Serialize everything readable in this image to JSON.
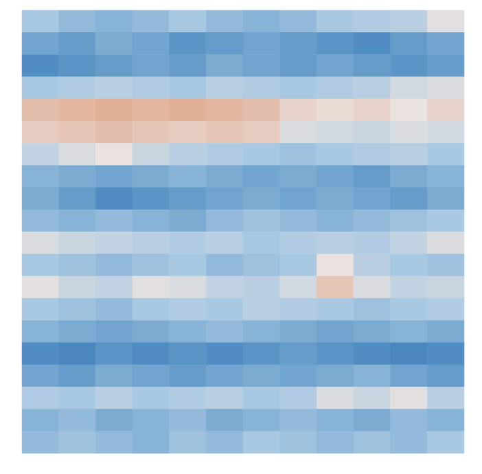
{
  "chart_data": {
    "type": "heatmap",
    "tick_labels": false,
    "zlim": [
      -1,
      1
    ],
    "cells": [
      [
        -0.2,
        -0.3,
        -0.35,
        -0.3,
        -0.2,
        -0.3,
        -0.35,
        -0.3,
        -0.2,
        -0.15,
        -0.1,
        0.15
      ],
      [
        -0.45,
        -0.5,
        -0.4,
        -0.45,
        -0.55,
        -0.5,
        -0.45,
        -0.5,
        -0.55,
        -0.6,
        -0.5,
        -0.45
      ],
      [
        -0.6,
        -0.55,
        -0.5,
        -0.45,
        -0.5,
        -0.4,
        -0.45,
        -0.5,
        -0.45,
        -0.5,
        -0.55,
        -0.5
      ],
      [
        -0.2,
        -0.15,
        -0.1,
        -0.15,
        -0.2,
        -0.1,
        -0.15,
        -0.2,
        -0.15,
        -0.1,
        0.05,
        0.1
      ],
      [
        0.45,
        0.5,
        0.55,
        0.5,
        0.55,
        0.5,
        0.45,
        0.3,
        0.25,
        0.3,
        0.2,
        0.3
      ],
      [
        0.35,
        0.4,
        0.45,
        0.4,
        0.35,
        0.4,
        0.35,
        0.1,
        0.05,
        0.0,
        0.1,
        0.05
      ],
      [
        -0.05,
        0.1,
        0.2,
        0.0,
        -0.1,
        -0.15,
        -0.2,
        -0.25,
        -0.2,
        -0.15,
        -0.1,
        -0.2
      ],
      [
        -0.35,
        -0.4,
        -0.45,
        -0.4,
        -0.35,
        -0.4,
        -0.45,
        -0.4,
        -0.45,
        -0.5,
        -0.4,
        -0.35
      ],
      [
        -0.4,
        -0.5,
        -0.6,
        -0.55,
        -0.5,
        -0.45,
        -0.4,
        -0.45,
        -0.4,
        -0.45,
        -0.5,
        -0.4
      ],
      [
        -0.3,
        -0.35,
        -0.3,
        -0.35,
        -0.4,
        -0.3,
        -0.25,
        -0.3,
        -0.35,
        -0.3,
        -0.25,
        -0.2
      ],
      [
        0.1,
        0.0,
        -0.05,
        -0.1,
        -0.15,
        -0.1,
        -0.2,
        -0.15,
        -0.1,
        -0.15,
        -0.05,
        0.1
      ],
      [
        -0.2,
        -0.25,
        -0.3,
        -0.25,
        -0.2,
        -0.3,
        -0.25,
        -0.2,
        0.2,
        -0.1,
        -0.2,
        -0.25
      ],
      [
        0.15,
        0.0,
        -0.05,
        0.15,
        0.1,
        -0.05,
        -0.1,
        0.05,
        0.4,
        0.1,
        -0.05,
        0.0
      ],
      [
        -0.2,
        -0.25,
        -0.3,
        -0.2,
        -0.15,
        -0.2,
        -0.1,
        -0.15,
        -0.2,
        -0.25,
        -0.2,
        -0.15
      ],
      [
        -0.35,
        -0.4,
        -0.45,
        -0.4,
        -0.35,
        -0.3,
        -0.35,
        -0.4,
        -0.45,
        -0.4,
        -0.35,
        -0.4
      ],
      [
        -0.6,
        -0.65,
        -0.55,
        -0.6,
        -0.55,
        -0.6,
        -0.55,
        -0.5,
        -0.55,
        -0.6,
        -0.65,
        -0.6
      ],
      [
        -0.45,
        -0.5,
        -0.4,
        -0.45,
        -0.5,
        -0.45,
        -0.4,
        -0.45,
        -0.4,
        -0.35,
        -0.45,
        -0.5
      ],
      [
        -0.15,
        -0.2,
        -0.1,
        -0.2,
        -0.15,
        -0.1,
        -0.2,
        -0.15,
        0.1,
        0.0,
        0.15,
        -0.1
      ],
      [
        -0.35,
        -0.3,
        -0.4,
        -0.35,
        -0.3,
        -0.4,
        -0.35,
        -0.3,
        -0.35,
        -0.4,
        -0.3,
        -0.35
      ],
      [
        -0.3,
        -0.25,
        -0.3,
        -0.35,
        -0.25,
        -0.3,
        -0.2,
        -0.25,
        -0.3,
        -0.25,
        -0.3,
        -0.2
      ]
    ]
  }
}
